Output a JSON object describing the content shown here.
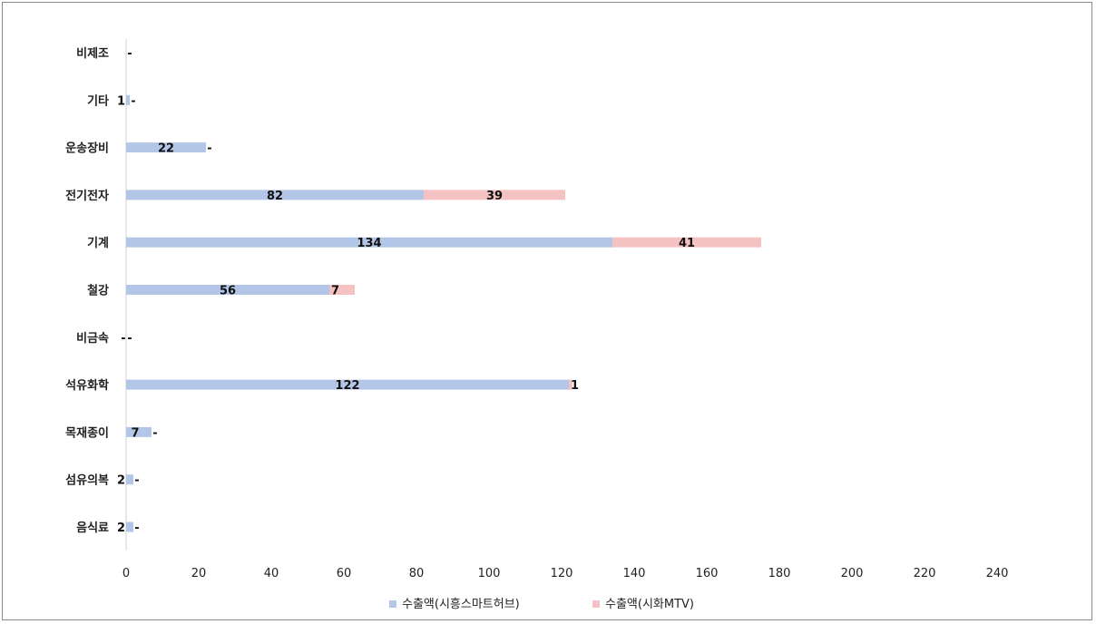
{
  "chart_data": {
    "type": "bar",
    "orientation": "horizontal",
    "stacked": true,
    "categories": [
      "비제조",
      "기타",
      "운송장비",
      "전기전자",
      "기계",
      "철강",
      "비금속",
      "석유화학",
      "목재종이",
      "섬유의복",
      "음식료"
    ],
    "series": [
      {
        "name": "수출액(시흥스마트허브)",
        "color": "#b4c6e7",
        "values": [
          0,
          1,
          22,
          82,
          134,
          56,
          0,
          122,
          7,
          2,
          2
        ],
        "labels": [
          "",
          "1",
          "22",
          "82",
          "134",
          "56",
          "-",
          "122",
          "7",
          "2",
          "2"
        ]
      },
      {
        "name": "수출액(시화MTV)",
        "color": "#f4c2c2",
        "values": [
          0,
          0,
          0,
          39,
          41,
          7,
          0,
          1,
          0,
          0,
          0
        ],
        "labels": [
          "-",
          "-",
          "-",
          "39",
          "41",
          "7",
          "-",
          "1",
          "-",
          "-",
          "-"
        ]
      }
    ],
    "xlim": [
      0,
      240
    ],
    "xticks": [
      0,
      20,
      40,
      60,
      80,
      100,
      120,
      140,
      160,
      180,
      200,
      220,
      240
    ],
    "grid": false,
    "legend_position": "bottom"
  }
}
